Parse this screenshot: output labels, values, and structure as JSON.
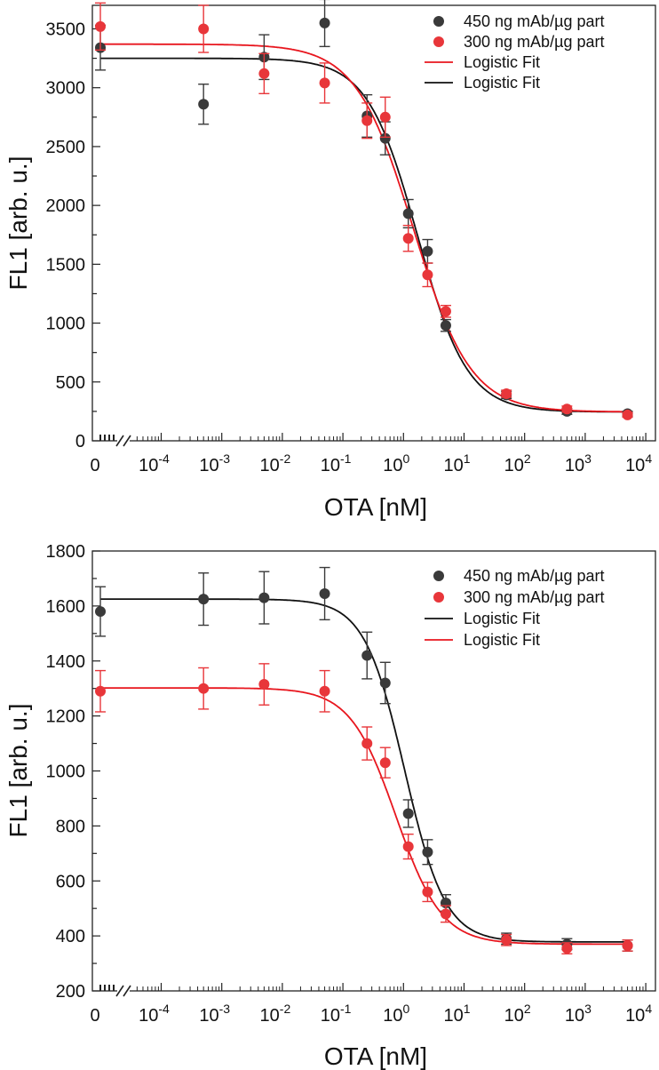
{
  "chart_data": [
    {
      "type": "scatter",
      "title": "",
      "xlabel": "OTA [nM]",
      "ylabel": "FL1 [arb. u.]",
      "xscale": "log with axis break at 0",
      "xlim": [
        1e-05,
        10000
      ],
      "ylim": [
        0,
        3700
      ],
      "yticks": [
        0,
        500,
        1000,
        1500,
        2000,
        2500,
        3000,
        3500
      ],
      "xticks": [
        {
          "base": "0",
          "exp": ""
        },
        {
          "base": "10",
          "exp": "-4"
        },
        {
          "base": "10",
          "exp": "-3"
        },
        {
          "base": "10",
          "exp": "-2"
        },
        {
          "base": "10",
          "exp": "-1"
        },
        {
          "base": "10",
          "exp": "0"
        },
        {
          "base": "10",
          "exp": "1"
        },
        {
          "base": "10",
          "exp": "2"
        },
        {
          "base": "10",
          "exp": "3"
        },
        {
          "base": "10",
          "exp": "4"
        }
      ],
      "legend_position": "top-right",
      "legend": [
        {
          "label": "450 ng mAb/µg part",
          "kind": "marker",
          "color": "#3a3a3a"
        },
        {
          "label": "300 ng mAb/µg part",
          "kind": "marker",
          "color": "#e8363a"
        },
        {
          "label": "Logistic Fit",
          "kind": "line",
          "color": "#e8161e"
        },
        {
          "label": "Logistic Fit",
          "kind": "line",
          "color": "#111111"
        }
      ],
      "series": [
        {
          "name": "450 ng mAb/µg part",
          "color": "#3a3a3a",
          "points": [
            {
              "x": 0,
              "y": 3340,
              "err": 190
            },
            {
              "x": 0.0005,
              "y": 2860,
              "err": 170
            },
            {
              "x": 0.005,
              "y": 3260,
              "err": 190
            },
            {
              "x": 0.05,
              "y": 3550,
              "err": 200
            },
            {
              "x": 0.25,
              "y": 2760,
              "err": 180
            },
            {
              "x": 0.5,
              "y": 2570,
              "err": 140
            },
            {
              "x": 1.2,
              "y": 1930,
              "err": 120
            },
            {
              "x": 2.5,
              "y": 1610,
              "err": 100
            },
            {
              "x": 5,
              "y": 980,
              "err": 50
            },
            {
              "x": 50,
              "y": 390,
              "err": 30
            },
            {
              "x": 500,
              "y": 250,
              "err": 25
            },
            {
              "x": 5000,
              "y": 230,
              "err": 20
            }
          ]
        },
        {
          "name": "300 ng mAb/µg part",
          "color": "#e8363a",
          "points": [
            {
              "x": 0,
              "y": 3520,
              "err": 200
            },
            {
              "x": 0.0005,
              "y": 3500,
              "err": 200
            },
            {
              "x": 0.005,
              "y": 3120,
              "err": 170
            },
            {
              "x": 0.05,
              "y": 3040,
              "err": 170
            },
            {
              "x": 0.25,
              "y": 2720,
              "err": 150
            },
            {
              "x": 0.5,
              "y": 2750,
              "err": 170
            },
            {
              "x": 1.2,
              "y": 1720,
              "err": 110
            },
            {
              "x": 2.5,
              "y": 1410,
              "err": 100
            },
            {
              "x": 5,
              "y": 1100,
              "err": 50
            },
            {
              "x": 50,
              "y": 400,
              "err": 30
            },
            {
              "x": 500,
              "y": 270,
              "err": 25
            },
            {
              "x": 5000,
              "y": 220,
              "err": 20
            }
          ]
        }
      ],
      "fits": [
        {
          "name": "Logistic Fit",
          "color": "#111111",
          "top": 3250,
          "bottom": 245,
          "ec50": 1.7,
          "hill": 1.05
        },
        {
          "name": "Logistic Fit",
          "color": "#e8161e",
          "top": 3370,
          "bottom": 245,
          "ec50": 1.45,
          "hill": 0.92
        }
      ]
    },
    {
      "type": "scatter",
      "title": "",
      "xlabel": "OTA [nM]",
      "ylabel": "FL1 [arb. u.]",
      "xscale": "log with axis break at 0",
      "xlim": [
        1e-05,
        10000
      ],
      "ylim": [
        200,
        1800
      ],
      "yticks": [
        200,
        400,
        600,
        800,
        1000,
        1200,
        1400,
        1600,
        1800
      ],
      "xticks": [
        {
          "base": "0",
          "exp": ""
        },
        {
          "base": "10",
          "exp": "-4"
        },
        {
          "base": "10",
          "exp": "-3"
        },
        {
          "base": "10",
          "exp": "-2"
        },
        {
          "base": "10",
          "exp": "-1"
        },
        {
          "base": "10",
          "exp": "0"
        },
        {
          "base": "10",
          "exp": "1"
        },
        {
          "base": "10",
          "exp": "2"
        },
        {
          "base": "10",
          "exp": "3"
        },
        {
          "base": "10",
          "exp": "4"
        }
      ],
      "legend_position": "top-right",
      "legend": [
        {
          "label": "450 ng mAb/µg part",
          "kind": "marker",
          "color": "#3a3a3a"
        },
        {
          "label": "300 ng mAb/µg part",
          "kind": "marker",
          "color": "#e8363a"
        },
        {
          "label": "Logistic Fit",
          "kind": "line",
          "color": "#111111"
        },
        {
          "label": "Logistic Fit",
          "kind": "line",
          "color": "#e8161e"
        }
      ],
      "series": [
        {
          "name": "450 ng mAb/µg part",
          "color": "#3a3a3a",
          "points": [
            {
              "x": 0,
              "y": 1580,
              "err": 90
            },
            {
              "x": 0.0005,
              "y": 1625,
              "err": 95
            },
            {
              "x": 0.005,
              "y": 1630,
              "err": 95
            },
            {
              "x": 0.05,
              "y": 1645,
              "err": 95
            },
            {
              "x": 0.25,
              "y": 1420,
              "err": 85
            },
            {
              "x": 0.5,
              "y": 1320,
              "err": 75
            },
            {
              "x": 1.2,
              "y": 845,
              "err": 50
            },
            {
              "x": 2.5,
              "y": 705,
              "err": 45
            },
            {
              "x": 5,
              "y": 520,
              "err": 30
            },
            {
              "x": 50,
              "y": 390,
              "err": 20
            },
            {
              "x": 500,
              "y": 370,
              "err": 20
            },
            {
              "x": 5000,
              "y": 365,
              "err": 20
            }
          ]
        },
        {
          "name": "300 ng mAb/µg part",
          "color": "#e8363a",
          "points": [
            {
              "x": 0,
              "y": 1290,
              "err": 75
            },
            {
              "x": 0.0005,
              "y": 1300,
              "err": 75
            },
            {
              "x": 0.005,
              "y": 1315,
              "err": 75
            },
            {
              "x": 0.05,
              "y": 1290,
              "err": 75
            },
            {
              "x": 0.25,
              "y": 1100,
              "err": 60
            },
            {
              "x": 0.5,
              "y": 1030,
              "err": 55
            },
            {
              "x": 1.2,
              "y": 725,
              "err": 45
            },
            {
              "x": 2.5,
              "y": 560,
              "err": 35
            },
            {
              "x": 5,
              "y": 480,
              "err": 30
            },
            {
              "x": 50,
              "y": 385,
              "err": 20
            },
            {
              "x": 500,
              "y": 355,
              "err": 20
            },
            {
              "x": 5000,
              "y": 365,
              "err": 20
            }
          ]
        }
      ],
      "fits": [
        {
          "name": "Logistic Fit",
          "color": "#111111",
          "top": 1625,
          "bottom": 378,
          "ec50": 1.05,
          "hill": 1.3
        },
        {
          "name": "Logistic Fit",
          "color": "#e8161e",
          "top": 1302,
          "bottom": 370,
          "ec50": 0.75,
          "hill": 1.15
        }
      ]
    }
  ]
}
